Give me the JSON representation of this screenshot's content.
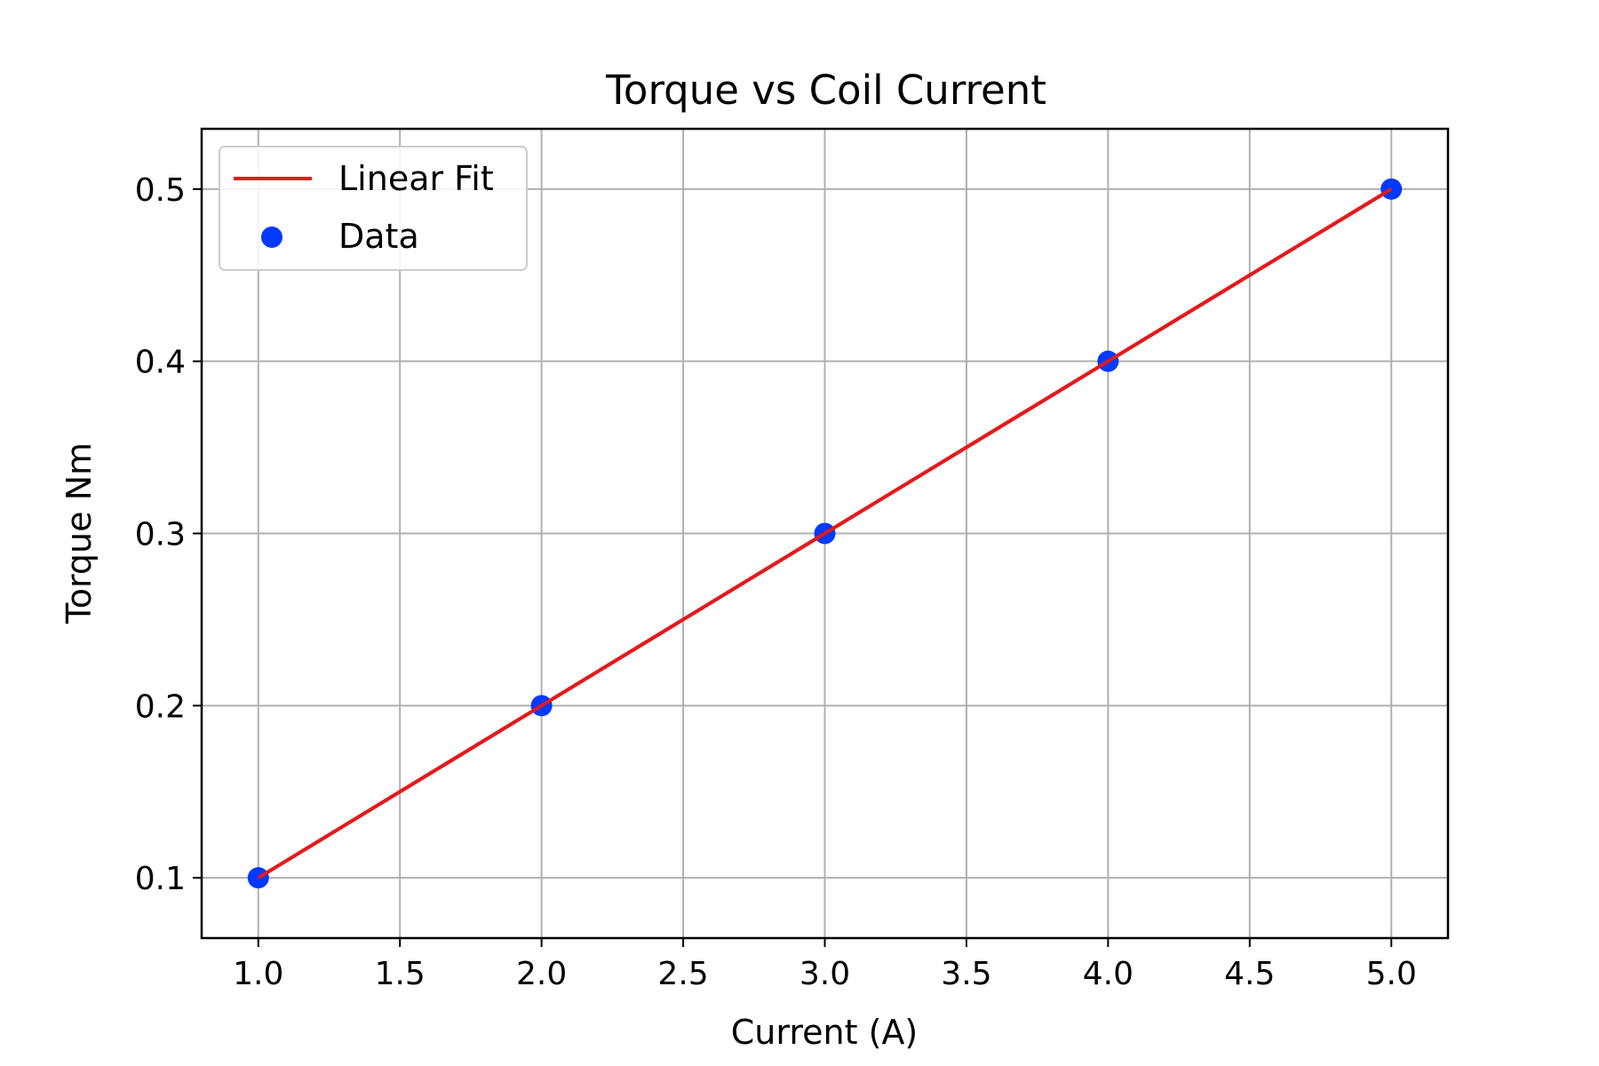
{
  "chart_data": {
    "type": "scatter",
    "title": "Torque vs Coil Current",
    "xlabel": "Current (A)",
    "ylabel": "Torque Nm",
    "xlim": [
      0.8,
      5.2
    ],
    "ylim": [
      0.065,
      0.535
    ],
    "x_ticks": [
      1.0,
      1.5,
      2.0,
      2.5,
      3.0,
      3.5,
      4.0,
      4.5,
      5.0
    ],
    "x_tick_labels": [
      "1.0",
      "1.5",
      "2.0",
      "2.5",
      "3.0",
      "3.5",
      "4.0",
      "4.5",
      "5.0"
    ],
    "y_ticks": [
      0.1,
      0.2,
      0.3,
      0.4,
      0.5
    ],
    "y_tick_labels": [
      "0.1",
      "0.2",
      "0.3",
      "0.4",
      "0.5"
    ],
    "grid": true,
    "legend_position": "upper-left",
    "series": [
      {
        "name": "Linear Fit",
        "kind": "line",
        "color": "#e31a1c",
        "x": [
          1.0,
          5.0
        ],
        "y": [
          0.1,
          0.5
        ]
      },
      {
        "name": "Data",
        "kind": "scatter",
        "color": "#0039ff",
        "x": [
          1.0,
          2.0,
          3.0,
          4.0,
          5.0
        ],
        "y": [
          0.1,
          0.2,
          0.3,
          0.4,
          0.5
        ]
      }
    ]
  }
}
